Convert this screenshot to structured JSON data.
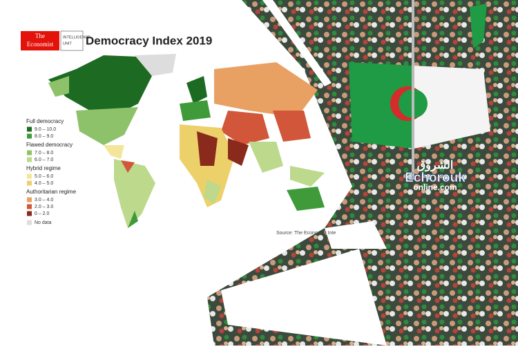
{
  "header": {
    "brand_line1": "The",
    "brand_line2": "Economist",
    "unit_line1": "INTELLIGENCE",
    "unit_line2": "UNIT",
    "title": "Democracy Index 2019"
  },
  "legend": {
    "groups": [
      {
        "name": "Full democracy",
        "items": [
          {
            "label": "9.0 – 10.0",
            "color": "#1d6b22"
          },
          {
            "label": "8.0 – 9.0",
            "color": "#3f9a3a"
          }
        ]
      },
      {
        "name": "Flawed democracy",
        "items": [
          {
            "label": "7.0 – 8.0",
            "color": "#8dc26a"
          },
          {
            "label": "6.0 – 7.0",
            "color": "#bcd98c"
          }
        ]
      },
      {
        "name": "Hybrid regime",
        "items": [
          {
            "label": "5.0 – 6.0",
            "color": "#f3e69a"
          },
          {
            "label": "4.0 – 5.0",
            "color": "#ecd06a"
          }
        ]
      },
      {
        "name": "Authoritarian regime",
        "items": [
          {
            "label": "3.0 – 4.0",
            "color": "#e8a063"
          },
          {
            "label": "2.0 – 3.0",
            "color": "#d1563a"
          },
          {
            "label": "0 – 2.0",
            "color": "#8a2a1c"
          }
        ]
      }
    ],
    "no_data": {
      "label": "No data",
      "color": "#dddddd"
    }
  },
  "source": "Source: The Economist Inte",
  "logo": {
    "arabic": "الشروق",
    "name": "Echorouk",
    "domain": "online.com"
  }
}
